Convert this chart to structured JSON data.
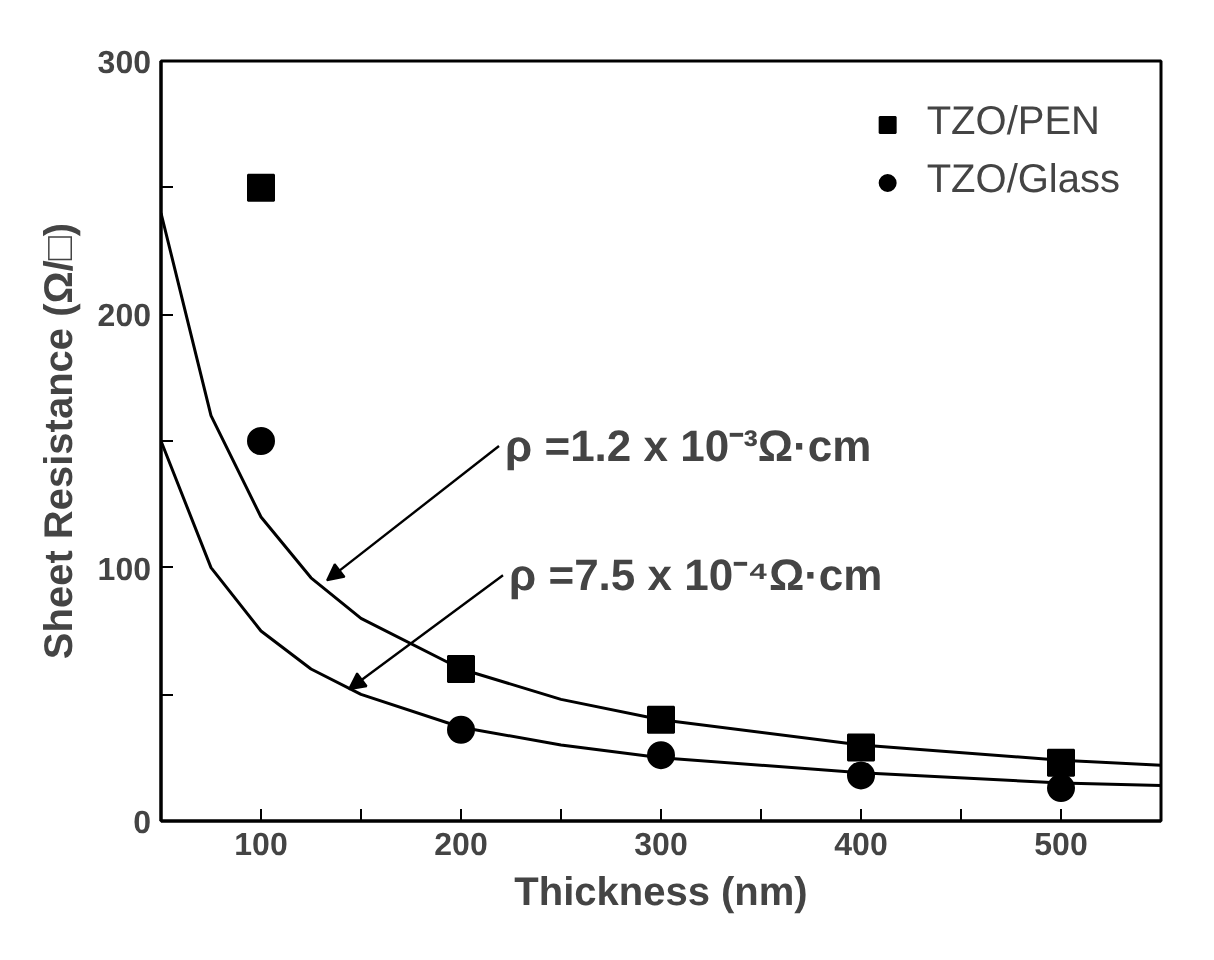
{
  "chart_data": {
    "type": "scatter",
    "xlabel": "Thickness (nm)",
    "ylabel": "Sheet Resistance (Ω/□)",
    "x": [
      100,
      200,
      300,
      400,
      500
    ],
    "xlim": [
      50,
      550
    ],
    "ylim": [
      0,
      300
    ],
    "xticks": [
      100,
      {
        "value": 150,
        "label": null
      },
      200,
      {
        "value": 250,
        "label": null
      },
      300,
      {
        "value": 350,
        "label": null
      },
      400,
      {
        "value": 450,
        "label": null
      },
      500
    ],
    "yticks": [
      0,
      {
        "value": 50,
        "label": null
      },
      100,
      {
        "value": 150,
        "label": null
      },
      200,
      {
        "value": 250,
        "label": null
      },
      300
    ],
    "grid": false,
    "legend": "top right",
    "series": [
      {
        "name": "TZO/PEN",
        "color": "#000000",
        "marker": "square",
        "values": [
          250,
          60,
          40,
          29,
          23
        ]
      },
      {
        "name": "TZO/Glass",
        "color": "#000000",
        "marker": "circle",
        "values": [
          150,
          36,
          26,
          18,
          13
        ]
      },
      {
        "type": "line",
        "color": "#000000",
        "x": [
          50,
          75,
          100,
          125,
          150,
          200,
          250,
          300,
          400,
          500,
          550
        ],
        "values": [
          240,
          160,
          120,
          96,
          80,
          60,
          48,
          40,
          30,
          24,
          22
        ]
      },
      {
        "type": "line",
        "color": "#000000",
        "x": [
          50,
          75,
          100,
          125,
          150,
          200,
          250,
          300,
          400,
          500,
          550
        ],
        "values": [
          150,
          100,
          75,
          60,
          50,
          37,
          30,
          25,
          19,
          15,
          14
        ]
      }
    ],
    "annotations": [
      {
        "text": "ρ =1.2 x 10⁻³Ω·cm",
        "x": 133,
        "y": 95
      },
      {
        "text": "ρ =7.5 x 10⁻⁴Ω·cm",
        "x": 144,
        "y": 52
      }
    ]
  }
}
